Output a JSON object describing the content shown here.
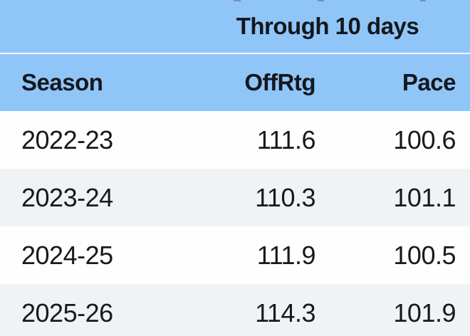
{
  "chart_data": {
    "type": "table",
    "title": "Through 10 days",
    "columns": [
      "Season",
      "OffRtg",
      "Pace"
    ],
    "rows": [
      [
        "2022-23",
        "111.6",
        "100.6"
      ],
      [
        "2023-24",
        "110.3",
        "101.1"
      ],
      [
        "2024-25",
        "111.9",
        "100.5"
      ],
      [
        "2025-26",
        "114.3",
        "101.9"
      ]
    ],
    "categories": [
      "2022-23",
      "2023-24",
      "2024-25",
      "2025-26"
    ],
    "series": [
      {
        "name": "OffRtg",
        "values": [
          111.6,
          110.3,
          111.9,
          114.3
        ]
      },
      {
        "name": "Pace",
        "values": [
          100.6,
          101.1,
          100.5,
          101.9
        ]
      }
    ],
    "layout_hints": {
      "numeric_columns_alignment": "right",
      "season_column_alignment": "left",
      "zebra_striping": true,
      "last_row_clipped_at_bottom": true
    }
  },
  "colors": {
    "header_blue": "#90c5f8",
    "row_white": "#fefefe",
    "row_alt_gray": "#f1f2f4",
    "text_dark": "#14171c",
    "divider_white": "#f3f8fe"
  }
}
